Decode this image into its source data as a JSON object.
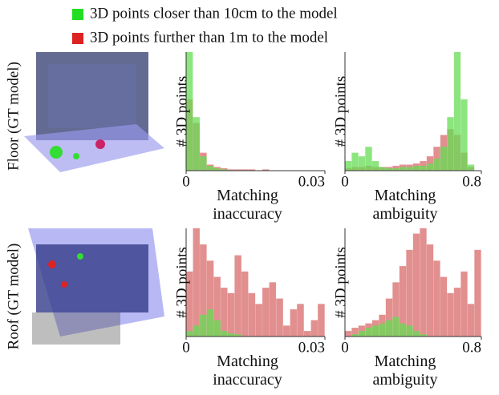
{
  "legend": [
    {
      "name": "3D points closer than 10cm to the model",
      "color": "#22dd22"
    },
    {
      "name": "3D points further than 1m to the model",
      "color": "#dd2222"
    }
  ],
  "row_labels": [
    "Floor (GT model)",
    "Roof (GT model)"
  ],
  "chart_data": [
    {
      "type": "histogram",
      "xlabel": "Matching inaccuracy",
      "ylabel": "# 3D points",
      "bins": [
        0,
        0.0015,
        0.003,
        0.0045,
        0.006,
        0.0075,
        0.009,
        0.0105,
        0.012,
        0.0135,
        0.015,
        0.0165,
        0.018,
        0.0195,
        0.021,
        0.0225,
        0.024,
        0.0255,
        0.027,
        0.0285,
        0.03
      ],
      "xlim": [
        0,
        0.03
      ],
      "xticks": [
        0,
        0.03
      ],
      "ylim": [
        0,
        100
      ],
      "series": [
        {
          "color": "#d96a6a",
          "values": [
            60,
            40,
            15,
            5,
            3,
            2,
            1,
            1,
            1,
            1,
            0,
            1,
            0,
            0,
            0,
            0,
            0,
            0,
            0,
            0
          ]
        },
        {
          "color": "#66dd55",
          "values": [
            100,
            45,
            12,
            4,
            2,
            1,
            0,
            0,
            0,
            0,
            0,
            0,
            0,
            0,
            0,
            0,
            0,
            0,
            0,
            0
          ]
        }
      ]
    },
    {
      "type": "histogram",
      "xlabel": "Matching ambiguity",
      "ylabel": "# 3D points",
      "bins": [
        0,
        0.04,
        0.08,
        0.12,
        0.16,
        0.2,
        0.24,
        0.28,
        0.32,
        0.36,
        0.4,
        0.44,
        0.48,
        0.52,
        0.56,
        0.6,
        0.64,
        0.68,
        0.72,
        0.76,
        0.8
      ],
      "xlim": [
        0,
        0.8
      ],
      "xticks": [
        0,
        0.8
      ],
      "ylim": [
        0,
        100
      ],
      "series": [
        {
          "color": "#d96a6a",
          "values": [
            2,
            3,
            3,
            4,
            3,
            3,
            3,
            4,
            5,
            5,
            6,
            8,
            12,
            20,
            30,
            35,
            30,
            15,
            3,
            0
          ]
        },
        {
          "color": "#66dd55",
          "values": [
            8,
            15,
            12,
            20,
            8,
            3,
            2,
            2,
            3,
            3,
            4,
            4,
            6,
            10,
            20,
            45,
            100,
            60,
            5,
            0
          ]
        }
      ]
    },
    {
      "type": "histogram",
      "xlabel": "Matching inaccuracy",
      "ylabel": "# 3D points",
      "bins": [
        0,
        0.0015,
        0.003,
        0.0045,
        0.006,
        0.0075,
        0.009,
        0.0105,
        0.012,
        0.0135,
        0.015,
        0.0165,
        0.018,
        0.0195,
        0.021,
        0.0225,
        0.024,
        0.0255,
        0.027,
        0.0285,
        0.03
      ],
      "xlim": [
        0,
        0.03
      ],
      "xticks": [
        0,
        0.03
      ],
      "ylim": [
        0,
        100
      ],
      "series": [
        {
          "color": "#d96a6a",
          "values": [
            60,
            100,
            85,
            70,
            55,
            45,
            40,
            75,
            60,
            40,
            30,
            45,
            50,
            35,
            10,
            25,
            30,
            5,
            15,
            30
          ]
        },
        {
          "color": "#66dd55",
          "values": [
            5,
            10,
            20,
            25,
            15,
            5,
            3,
            2,
            0,
            0,
            0,
            0,
            0,
            0,
            0,
            0,
            0,
            0,
            0,
            0
          ]
        }
      ]
    },
    {
      "type": "histogram",
      "xlabel": "Matching ambiguity",
      "ylabel": "# 3D points",
      "bins": [
        0,
        0.04,
        0.08,
        0.12,
        0.16,
        0.2,
        0.24,
        0.28,
        0.32,
        0.36,
        0.4,
        0.44,
        0.48,
        0.52,
        0.56,
        0.6,
        0.64,
        0.68,
        0.72,
        0.76,
        0.8
      ],
      "xlim": [
        0,
        0.8
      ],
      "xticks": [
        0,
        0.8
      ],
      "ylim": [
        0,
        100
      ],
      "series": [
        {
          "color": "#d96a6a",
          "values": [
            5,
            8,
            10,
            12,
            15,
            20,
            35,
            50,
            65,
            80,
            95,
            100,
            85,
            70,
            55,
            40,
            45,
            60,
            30,
            80
          ]
        },
        {
          "color": "#66dd55",
          "values": [
            0,
            2,
            5,
            8,
            10,
            12,
            15,
            18,
            12,
            10,
            5,
            2,
            0,
            0,
            0,
            0,
            0,
            0,
            0,
            0
          ]
        }
      ]
    }
  ]
}
